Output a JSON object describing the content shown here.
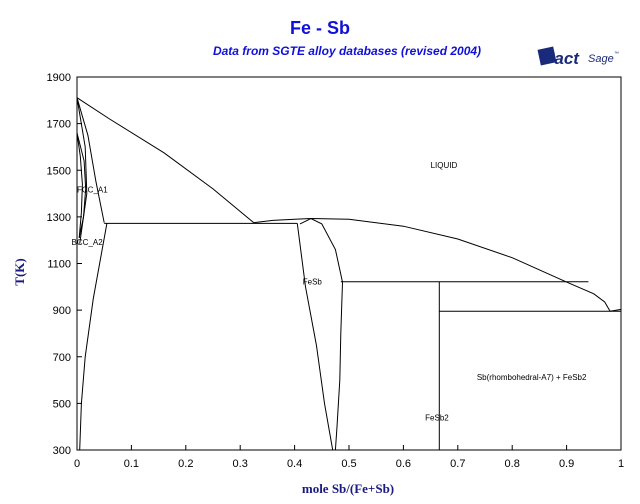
{
  "chart_data": {
    "type": "line",
    "title": "Fe - Sb",
    "subtitle": "Data from SGTE alloy databases (revised 2004)",
    "xlabel": "mole Sb/(Fe+Sb)",
    "ylabel": "T(K)",
    "xlim": [
      0,
      1
    ],
    "ylim": [
      300,
      1900
    ],
    "x_ticks": [
      "0",
      "0.1",
      "0.2",
      "0.3",
      "0.4",
      "0.5",
      "0.6",
      "0.7",
      "0.8",
      "0.9",
      "1"
    ],
    "y_ticks": [
      "300",
      "500",
      "700",
      "900",
      "1100",
      "1300",
      "1500",
      "1700",
      "1900"
    ],
    "grid": false,
    "region_labels": [
      {
        "text": "LIQUID",
        "x": 0.65,
        "y": 1510
      },
      {
        "text": "FCC_A1",
        "x": 0.0,
        "y": 1405
      },
      {
        "text": "BCC_A2",
        "x": -0.01,
        "y": 1180
      },
      {
        "text": "FeSb",
        "x": 0.415,
        "y": 1010
      },
      {
        "text": "FeSb2",
        "x": 0.64,
        "y": 427
      },
      {
        "text": "Sb(rhombohedral-A7) + FeSb2",
        "x": 0.735,
        "y": 600
      }
    ],
    "series": [
      {
        "points": [
          [
            0.0,
            1811
          ],
          [
            0.06,
            1720
          ],
          [
            0.16,
            1575
          ],
          [
            0.25,
            1420
          ],
          [
            0.325,
            1275
          ]
        ]
      },
      {
        "points": [
          [
            0.325,
            1275
          ],
          [
            0.36,
            1285
          ],
          [
            0.4,
            1290
          ],
          [
            0.43,
            1293
          ],
          [
            0.5,
            1290
          ],
          [
            0.6,
            1260
          ],
          [
            0.7,
            1205
          ],
          [
            0.8,
            1125
          ],
          [
            0.9,
            1020
          ],
          [
            0.95,
            970
          ],
          [
            0.97,
            935
          ],
          [
            0.98,
            895
          ]
        ]
      },
      {
        "points": [
          [
            0.0,
            1811
          ],
          [
            0.02,
            1650
          ],
          [
            0.035,
            1450
          ],
          [
            0.05,
            1275
          ]
        ]
      },
      {
        "points": [
          [
            0.0,
            1811
          ],
          [
            0.015,
            1600
          ],
          [
            0.018,
            1400
          ],
          [
            0.005,
            1185
          ]
        ]
      },
      {
        "points": [
          [
            0.055,
            1272
          ],
          [
            0.03,
            950
          ],
          [
            0.015,
            700
          ],
          [
            0.008,
            500
          ],
          [
            0.005,
            300
          ]
        ]
      },
      {
        "points": [
          [
            0.05,
            1272
          ],
          [
            0.405,
            1272
          ]
        ]
      },
      {
        "points": [
          [
            0.41,
            1270
          ],
          [
            0.43,
            1293
          ],
          [
            0.45,
            1270
          ],
          [
            0.475,
            1160
          ],
          [
            0.488,
            1020
          ]
        ]
      },
      {
        "points": [
          [
            0.405,
            1272
          ],
          [
            0.42,
            1000
          ],
          [
            0.44,
            750
          ],
          [
            0.455,
            500
          ],
          [
            0.47,
            300
          ]
        ]
      },
      {
        "points": [
          [
            0.488,
            1020
          ],
          [
            0.485,
            800
          ],
          [
            0.483,
            600
          ],
          [
            0.478,
            400
          ],
          [
            0.475,
            300
          ]
        ]
      },
      {
        "points": [
          [
            0.485,
            1022
          ],
          [
            0.94,
            1022
          ]
        ]
      },
      {
        "points": [
          [
            0.666,
            1022
          ],
          [
            0.666,
            300
          ]
        ]
      },
      {
        "points": [
          [
            0.666,
            895
          ],
          [
            1.0,
            895
          ]
        ]
      },
      {
        "points": [
          [
            0.98,
            895
          ],
          [
            1.0,
            903
          ]
        ]
      },
      {
        "points": [
          [
            0.0,
            1660
          ],
          [
            0.006,
            1560
          ],
          [
            0.01,
            1440
          ],
          [
            0.008,
            1320
          ],
          [
            0.004,
            1210
          ]
        ]
      },
      {
        "points": [
          [
            0.0,
            1660
          ],
          [
            0.013,
            1540
          ],
          [
            0.016,
            1420
          ],
          [
            0.012,
            1300
          ],
          [
            0.004,
            1210
          ]
        ]
      }
    ]
  }
}
